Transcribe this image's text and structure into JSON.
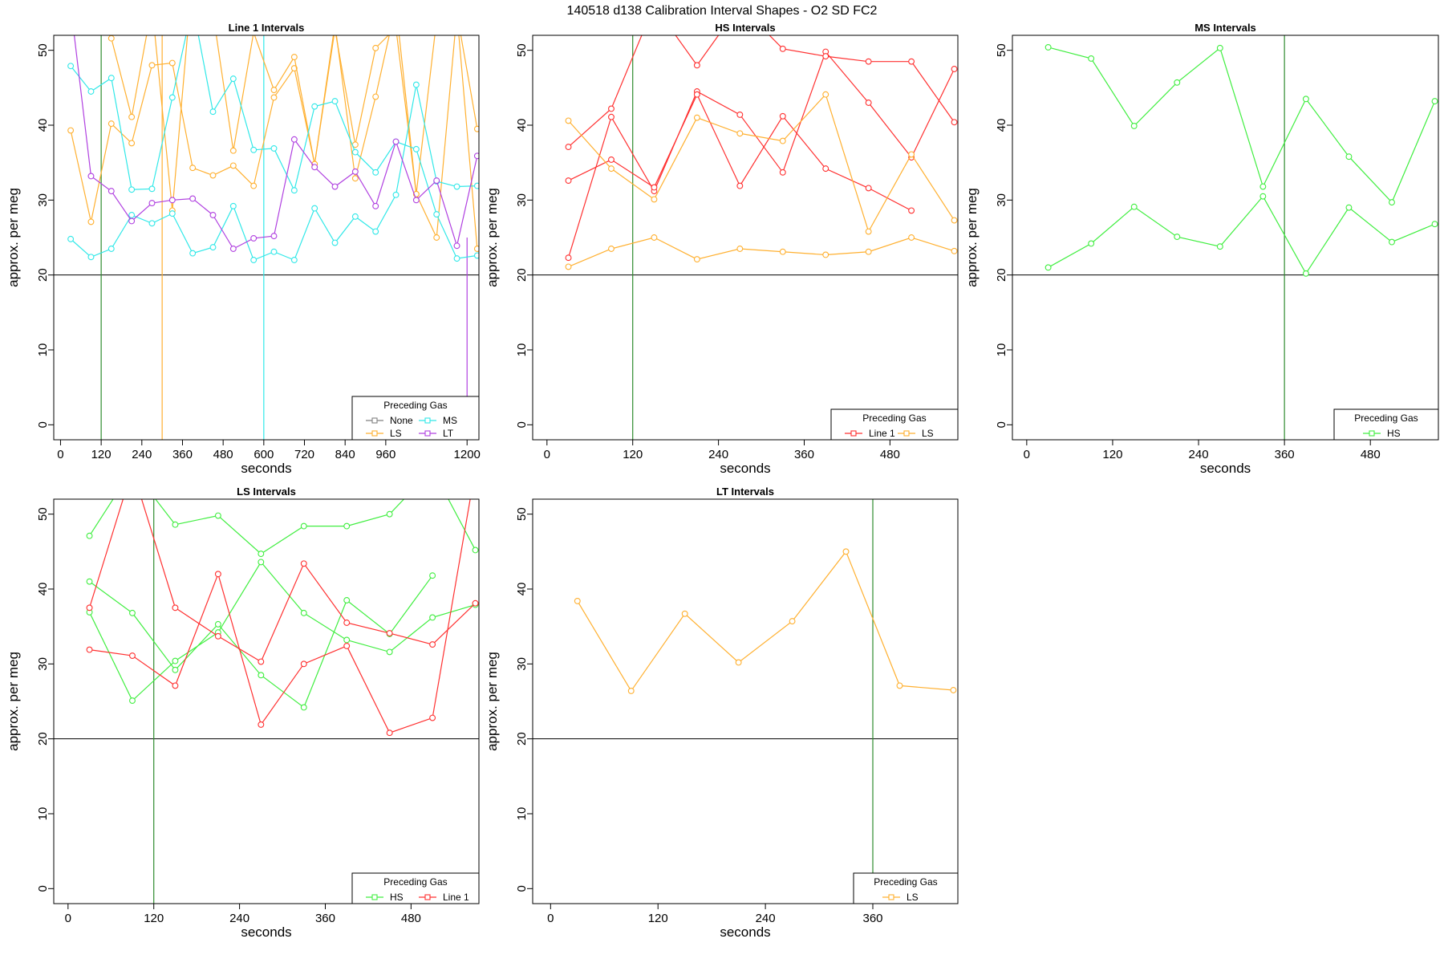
{
  "page": {
    "title": "140518   d138   Calibration Interval Shapes - O2 SD FC2",
    "legend_title": "Preceding Gas"
  },
  "colors": {
    "Line 1": "#ff3030",
    "HS": "#40ee40",
    "MS": "#30e8e8",
    "LS": "#ffb030",
    "LT": "#b040e0",
    "None": "#808080",
    "green_vline": "#2e8b2e",
    "axis": "#000000"
  },
  "chart_data": [
    {
      "type": "line",
      "title": "Line 1 Intervals",
      "xlabel": "seconds",
      "ylabel": "approx. per meg",
      "xlim": [
        -20,
        1235
      ],
      "ylim": [
        -2,
        52
      ],
      "xticks": [
        0,
        120,
        240,
        360,
        480,
        600,
        720,
        840,
        960,
        1200
      ],
      "yticks": [
        0,
        10,
        20,
        30,
        40,
        50
      ],
      "hline": 20,
      "vlines": [
        {
          "x": 120,
          "gas": "green_vline"
        },
        {
          "x": 300,
          "gas": "LS"
        },
        {
          "x": 600,
          "gas": "MS"
        },
        {
          "x": 1200,
          "gas": "LT",
          "y_range": [
            -2,
            25
          ]
        }
      ],
      "legend": {
        "title": "Preceding Gas",
        "entries": [
          "None",
          "MS",
          "LS",
          "LT"
        ],
        "position": "bottom-right"
      },
      "series": [
        {
          "gas": "LS",
          "x": [
            30,
            90,
            150,
            210,
            270,
            330,
            390,
            450,
            510,
            570,
            630,
            690,
            750,
            810,
            870,
            930,
            990,
            1050,
            1110,
            1170,
            1230
          ],
          "y": [
            39.3,
            27.1,
            40.2,
            37.6,
            48.0,
            48.3,
            34.3,
            33.3,
            34.6,
            31.9,
            43.7,
            47.6,
            34.8,
            53.5,
            32.9,
            43.8,
            56.0,
            30.8,
            54.0,
            55.0,
            23.5
          ]
        },
        {
          "gas": "LS",
          "x": [
            30,
            90,
            150,
            210,
            270,
            330,
            390,
            450,
            510,
            570,
            630,
            690,
            750,
            810,
            870,
            930,
            990,
            1050,
            1110,
            1170,
            1230
          ],
          "y": [
            56.0,
            56.0,
            51.6,
            41.1,
            56.0,
            28.6,
            60.0,
            55.0,
            36.6,
            52.4,
            44.7,
            49.1,
            34.8,
            52.8,
            37.4,
            50.3,
            53.0,
            30.8,
            25.0,
            55.0,
            39.5
          ]
        },
        {
          "gas": "MS",
          "x": [
            30,
            90,
            150,
            210,
            270,
            330,
            390,
            450,
            510,
            570,
            630,
            690,
            750,
            810,
            870,
            930,
            990,
            1050,
            1110,
            1170,
            1230
          ],
          "y": [
            47.9,
            44.5,
            46.3,
            31.4,
            31.5,
            43.7,
            56.0,
            41.8,
            46.2,
            36.7,
            36.9,
            31.3,
            42.5,
            43.2,
            36.4,
            33.7,
            37.8,
            36.8,
            28.1,
            22.2,
            22.6
          ]
        },
        {
          "gas": "MS",
          "x": [
            30,
            90,
            150,
            210,
            270,
            330,
            390,
            450,
            510,
            570,
            630,
            690,
            750,
            810,
            870,
            930,
            990,
            1050,
            1110,
            1170,
            1230
          ],
          "y": [
            24.8,
            22.4,
            23.5,
            28.0,
            26.9,
            28.2,
            22.9,
            23.7,
            29.2,
            22.0,
            23.1,
            22.0,
            28.9,
            24.3,
            27.8,
            25.8,
            30.7,
            45.4,
            32.5,
            31.8,
            31.9
          ]
        },
        {
          "gas": "LT",
          "x": [
            30,
            90,
            150,
            210,
            270,
            330,
            390,
            450,
            510,
            570,
            630,
            690,
            750,
            810,
            870,
            930,
            990,
            1050,
            1110,
            1170,
            1230
          ],
          "y": [
            56.0,
            33.2,
            31.2,
            27.2,
            29.6,
            30.0,
            30.2,
            28.0,
            23.5,
            24.9,
            25.2,
            38.1,
            34.4,
            31.8,
            33.8,
            29.2,
            37.8,
            30.0,
            32.6,
            23.9,
            35.9
          ]
        }
      ]
    },
    {
      "type": "line",
      "title": "HS Intervals",
      "xlabel": "seconds",
      "ylabel": "approx. per meg",
      "xlim": [
        -20,
        575
      ],
      "ylim": [
        -2,
        52
      ],
      "xticks": [
        0,
        120,
        240,
        360,
        480
      ],
      "yticks": [
        0,
        10,
        20,
        30,
        40,
        50
      ],
      "hline": 20,
      "vlines": [
        {
          "x": 120,
          "gas": "green_vline"
        }
      ],
      "legend": {
        "title": "Preceding Gas",
        "entries": [
          "Line 1",
          "LS"
        ],
        "position": "bottom-right"
      },
      "series": [
        {
          "gas": "Line 1",
          "x": [
            30,
            90,
            150,
            210,
            270,
            330,
            390,
            450,
            510,
            570
          ],
          "y": [
            22.3,
            41.1,
            31.2,
            44.5,
            41.4,
            33.7,
            49.8,
            43.0,
            35.7,
            47.5
          ]
        },
        {
          "gas": "Line 1",
          "x": [
            30,
            90,
            150,
            210,
            270,
            330,
            390,
            450,
            510,
            570
          ],
          "y": [
            32.6,
            35.4,
            31.7,
            44.1,
            31.9,
            41.2,
            34.2,
            31.6,
            28.6,
            null
          ]
        },
        {
          "gas": "Line 1",
          "x": [
            30,
            90,
            150,
            210,
            270,
            330,
            390,
            450,
            510,
            570
          ],
          "y": [
            37.1,
            42.2,
            56.0,
            48.0,
            56.0,
            50.2,
            49.2,
            48.5,
            48.5,
            40.4
          ]
        },
        {
          "gas": "LS",
          "x": [
            30,
            90,
            150,
            210,
            270,
            330,
            390,
            450,
            510,
            570
          ],
          "y": [
            40.6,
            34.2,
            30.1,
            41.0,
            38.9,
            37.9,
            44.1,
            25.8,
            36.1,
            27.3
          ]
        },
        {
          "gas": "LS",
          "x": [
            30,
            90,
            150,
            210,
            270,
            330,
            390,
            450,
            510,
            570
          ],
          "y": [
            21.1,
            23.5,
            25.0,
            22.1,
            23.5,
            23.1,
            22.7,
            23.1,
            25.0,
            23.2
          ]
        }
      ]
    },
    {
      "type": "line",
      "title": "MS Intervals",
      "xlabel": "seconds",
      "ylabel": "approx. per meg",
      "xlim": [
        -20,
        575
      ],
      "ylim": [
        -2,
        52
      ],
      "xticks": [
        0,
        120,
        240,
        360,
        480
      ],
      "yticks": [
        0,
        10,
        20,
        30,
        40,
        50
      ],
      "hline": 20,
      "vlines": [
        {
          "x": 360,
          "gas": "green_vline"
        }
      ],
      "legend": {
        "title": "Preceding Gas",
        "entries": [
          "HS"
        ],
        "position": "bottom-right"
      },
      "series": [
        {
          "gas": "HS",
          "x": [
            30,
            90,
            150,
            210,
            270,
            330,
            390,
            450,
            510,
            570
          ],
          "y": [
            50.4,
            48.9,
            39.9,
            45.7,
            50.3,
            31.8,
            43.5,
            35.8,
            29.7,
            43.2
          ]
        },
        {
          "gas": "HS",
          "x": [
            30,
            90,
            150,
            210,
            270,
            330,
            390,
            450,
            510,
            570
          ],
          "y": [
            21.0,
            24.2,
            29.1,
            25.1,
            23.8,
            30.5,
            20.2,
            29.0,
            24.4,
            26.8
          ]
        }
      ]
    },
    {
      "type": "line",
      "title": "LS Intervals",
      "xlabel": "seconds",
      "ylabel": "approx. per meg",
      "xlim": [
        -20,
        575
      ],
      "ylim": [
        -2,
        52
      ],
      "xticks": [
        0,
        120,
        240,
        360,
        480
      ],
      "yticks": [
        0,
        10,
        20,
        30,
        40,
        50
      ],
      "hline": 20,
      "vlines": [
        {
          "x": 120,
          "gas": "green_vline"
        }
      ],
      "legend": {
        "title": "Preceding Gas",
        "entries": [
          "HS",
          "Line 1"
        ],
        "position": "bottom-right"
      },
      "series": [
        {
          "gas": "HS",
          "x": [
            30,
            90,
            150,
            210,
            270,
            330,
            390,
            450,
            510,
            570
          ],
          "y": [
            47.1,
            56.0,
            48.6,
            49.8,
            44.7,
            48.4,
            48.4,
            50.0,
            56.0,
            45.2
          ]
        },
        {
          "gas": "HS",
          "x": [
            30,
            90,
            150,
            210,
            270,
            330,
            390,
            450,
            510,
            570
          ],
          "y": [
            41.0,
            36.8,
            29.2,
            35.3,
            28.5,
            24.2,
            38.5,
            34.0,
            41.8,
            null
          ]
        },
        {
          "gas": "HS",
          "x": [
            30,
            90,
            150,
            210,
            270,
            330,
            390,
            450,
            510,
            570
          ],
          "y": [
            36.9,
            25.1,
            30.4,
            34.2,
            43.6,
            36.8,
            33.2,
            31.6,
            36.2,
            37.9
          ]
        },
        {
          "gas": "Line 1",
          "x": [
            30,
            90,
            150,
            210,
            270,
            330,
            390,
            450,
            510,
            570
          ],
          "y": [
            37.5,
            56.0,
            37.5,
            33.7,
            30.3,
            43.4,
            35.5,
            34.1,
            32.6,
            38.1
          ]
        },
        {
          "gas": "Line 1",
          "x": [
            30,
            90,
            150,
            210,
            270,
            330,
            390,
            450,
            510,
            570
          ],
          "y": [
            31.9,
            31.1,
            27.1,
            42.0,
            21.9,
            30.0,
            32.4,
            20.8,
            22.8,
            56.0
          ]
        }
      ]
    },
    {
      "type": "line",
      "title": "LT Intervals",
      "xlabel": "seconds",
      "ylabel": "approx. per meg",
      "xlim": [
        -20,
        455
      ],
      "ylim": [
        -2,
        52
      ],
      "xticks": [
        0,
        120,
        240,
        360
      ],
      "yticks": [
        0,
        10,
        20,
        30,
        40,
        50
      ],
      "hline": 20,
      "vlines": [
        {
          "x": 360,
          "gas": "green_vline"
        }
      ],
      "legend": {
        "title": "Preceding Gas",
        "entries": [
          "LS"
        ],
        "position": "bottom-right"
      },
      "series": [
        {
          "gas": "LS",
          "x": [
            30,
            90,
            150,
            210,
            270,
            330,
            390,
            450
          ],
          "y": [
            38.4,
            26.4,
            36.7,
            30.2,
            35.7,
            45.0,
            27.1,
            26.5
          ]
        }
      ]
    }
  ]
}
